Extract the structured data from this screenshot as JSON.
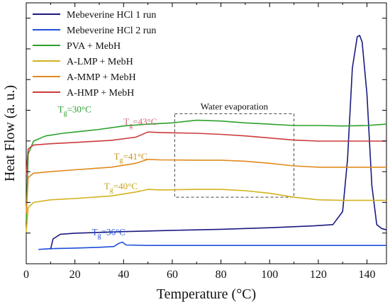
{
  "chart_data": {
    "type": "line",
    "xlabel": "Temperature (°C)",
    "ylabel": "Heat Flow (a. u.)",
    "xlim": [
      0,
      148
    ],
    "ylim": [
      0,
      100
    ],
    "x_ticks": [
      "0",
      "20",
      "40",
      "60",
      "80",
      "100",
      "120",
      "140"
    ],
    "grid": false,
    "legend_position": "top-left",
    "series": [
      {
        "name": "Mebeverine HCl 1 run",
        "color": "#1a1a80",
        "points": [
          [
            10,
            5.5
          ],
          [
            11,
            9.5
          ],
          [
            14,
            11.3
          ],
          [
            20,
            11.7
          ],
          [
            40,
            12.3
          ],
          [
            60,
            12.8
          ],
          [
            80,
            13.2
          ],
          [
            100,
            13.8
          ],
          [
            118,
            14.5
          ],
          [
            126,
            15
          ],
          [
            130,
            20
          ],
          [
            132,
            40
          ],
          [
            134,
            75
          ],
          [
            136,
            87
          ],
          [
            137,
            87.5
          ],
          [
            138,
            85
          ],
          [
            140,
            65
          ],
          [
            142,
            30
          ],
          [
            144,
            15
          ],
          [
            146,
            13.5
          ],
          [
            148,
            13
          ]
        ]
      },
      {
        "name": "Mebeverine HCl 2 run",
        "color": "#1f4fd9",
        "points": [
          [
            5,
            5.5
          ],
          [
            10,
            5.8
          ],
          [
            20,
            6
          ],
          [
            30,
            6.3
          ],
          [
            36,
            6.6
          ],
          [
            38,
            7.8
          ],
          [
            39.5,
            8.3
          ],
          [
            41,
            7.2
          ],
          [
            50,
            7
          ],
          [
            60,
            7
          ],
          [
            80,
            7
          ],
          [
            100,
            7
          ],
          [
            120,
            7
          ],
          [
            148,
            7
          ]
        ]
      },
      {
        "name": "PVA + MebH",
        "color": "#2ca02c",
        "points": [
          [
            0,
            16
          ],
          [
            0.8,
            42
          ],
          [
            3,
            47
          ],
          [
            8,
            49
          ],
          [
            15,
            50
          ],
          [
            20,
            50.5
          ],
          [
            30,
            51.5
          ],
          [
            40,
            52.8
          ],
          [
            50,
            53.5
          ],
          [
            60,
            54
          ],
          [
            70,
            55
          ],
          [
            80,
            54.7
          ],
          [
            90,
            54
          ],
          [
            100,
            53.5
          ],
          [
            110,
            53
          ],
          [
            120,
            53
          ],
          [
            130,
            52.8
          ],
          [
            140,
            53
          ],
          [
            148,
            53.5
          ]
        ]
      },
      {
        "name": "A-LMP + MebH",
        "color": "#d4b21f",
        "points": [
          [
            0,
            12
          ],
          [
            0.8,
            21.5
          ],
          [
            3,
            23.5
          ],
          [
            10,
            24.5
          ],
          [
            20,
            25
          ],
          [
            35,
            26
          ],
          [
            45,
            27.5
          ],
          [
            50,
            28.5
          ],
          [
            55,
            28.3
          ],
          [
            70,
            28.5
          ],
          [
            80,
            28.5
          ],
          [
            90,
            28
          ],
          [
            100,
            27
          ],
          [
            110,
            25.5
          ],
          [
            120,
            24.5
          ],
          [
            130,
            24.3
          ],
          [
            148,
            24.3
          ]
        ]
      },
      {
        "name": "A-MMP + MebH",
        "color": "#e08a1e",
        "points": [
          [
            0,
            19
          ],
          [
            0.8,
            33
          ],
          [
            3,
            34.7
          ],
          [
            10,
            35.3
          ],
          [
            20,
            36
          ],
          [
            35,
            37
          ],
          [
            45,
            38.5
          ],
          [
            50,
            40
          ],
          [
            55,
            39.8
          ],
          [
            70,
            39.7
          ],
          [
            80,
            39.7
          ],
          [
            90,
            39.3
          ],
          [
            100,
            38.5
          ],
          [
            110,
            37.5
          ],
          [
            120,
            37
          ],
          [
            148,
            37
          ]
        ]
      },
      {
        "name": "A-HMP + MebH",
        "color": "#cc3b3b",
        "points": [
          [
            0,
            34
          ],
          [
            0.8,
            44
          ],
          [
            3,
            45.5
          ],
          [
            10,
            46
          ],
          [
            20,
            46.5
          ],
          [
            35,
            47.3
          ],
          [
            45,
            48.5
          ],
          [
            50,
            50.5
          ],
          [
            55,
            50.3
          ],
          [
            70,
            50
          ],
          [
            80,
            49.6
          ],
          [
            90,
            49
          ],
          [
            100,
            48.2
          ],
          [
            110,
            47.4
          ],
          [
            120,
            47
          ],
          [
            148,
            47
          ]
        ]
      }
    ],
    "annotations": [
      {
        "text": "T_g=30°C",
        "main": "T",
        "sub": "g",
        "rest": "=30°C",
        "x": 13,
        "y": 58,
        "color": "#2ca02c"
      },
      {
        "text": "T_g=43°C",
        "main": "T",
        "sub": "g",
        "rest": "=43°C",
        "x": 40,
        "y": 53.3,
        "color": "#cc6677"
      },
      {
        "text": "T_g=41°C",
        "main": "T",
        "sub": "g",
        "rest": "=41°C",
        "x": 36,
        "y": 40,
        "color": "#c8951c"
      },
      {
        "text": "T_g=40°C",
        "main": "T",
        "sub": "g",
        "rest": "=40°C",
        "x": 32,
        "y": 28.5,
        "color": "#c8a51c"
      },
      {
        "text": "T_g=36°C",
        "main": "T",
        "sub": "g",
        "rest": "=36°C",
        "x": 27,
        "y": 11,
        "color": "#1f4fd9"
      }
    ],
    "region": {
      "label": "Water evaporation",
      "x": [
        61,
        110
      ],
      "y": [
        25.5,
        57.5
      ]
    }
  }
}
